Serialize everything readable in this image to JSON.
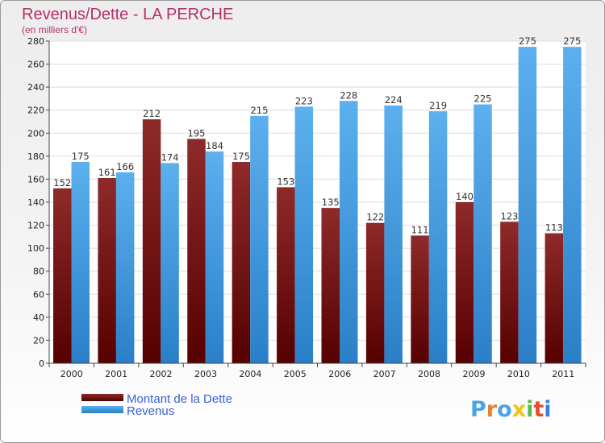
{
  "chart_data": {
    "type": "bar",
    "title": "Revenus/Dette - LA PERCHE",
    "subtitle": "(en milliers d'€)",
    "categories": [
      "2000",
      "2001",
      "2002",
      "2003",
      "2004",
      "2005",
      "2006",
      "2007",
      "2008",
      "2009",
      "2010",
      "2011"
    ],
    "series": [
      {
        "name": "Montant de la Dette",
        "values": [
          152,
          161,
          212,
          195,
          175,
          153,
          135,
          122,
          111,
          140,
          123,
          113
        ],
        "color": "#7a1a1a"
      },
      {
        "name": "Revenus",
        "values": [
          175,
          166,
          174,
          184,
          215,
          223,
          228,
          224,
          219,
          225,
          275,
          275
        ],
        "color": "#4aa3e8"
      }
    ],
    "ylim": [
      0,
      280
    ],
    "ytick_step": 20,
    "grid": true,
    "legend_position": "bottom-left"
  },
  "logo": {
    "text": "Proxiti",
    "colors": [
      "#4aa3e8",
      "#e8822a",
      "#4aa3e8",
      "#f2c21a",
      "#59b94a",
      "#e84a2a",
      "#3a7fd8"
    ]
  }
}
